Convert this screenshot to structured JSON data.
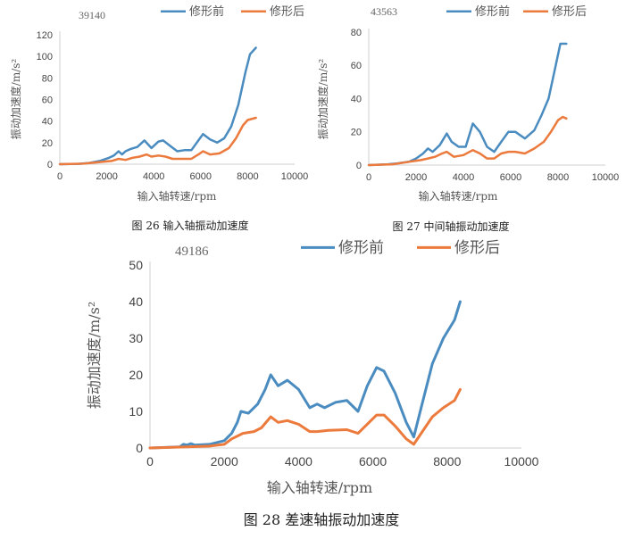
{
  "colors": {
    "before": "#4a8cc0",
    "after": "#eb7a3c",
    "axis": "#cfcfcf"
  },
  "chart_data": [
    {
      "type": "line",
      "corner_label": "39140",
      "caption": "图 26 输入轴振动加速度",
      "xlabel": "输入轴转速/rpm",
      "ylabel": "振动加速度/m/s²",
      "xlim": [
        0,
        10000
      ],
      "ylim": [
        0,
        120
      ],
      "xticks": [
        0,
        2000,
        4000,
        6000,
        8000,
        10000
      ],
      "yticks": [
        0,
        20,
        40,
        60,
        80,
        100,
        120
      ],
      "legend_position": "top",
      "series": [
        {
          "name": "修形前",
          "points": [
            [
              0,
              0
            ],
            [
              800,
              0.3
            ],
            [
              1200,
              1
            ],
            [
              1700,
              3
            ],
            [
              2100,
              6
            ],
            [
              2300,
              8
            ],
            [
              2500,
              12
            ],
            [
              2650,
              9
            ],
            [
              2800,
              12
            ],
            [
              3000,
              14
            ],
            [
              3300,
              16
            ],
            [
              3600,
              22
            ],
            [
              3900,
              15
            ],
            [
              4200,
              21
            ],
            [
              4400,
              22
            ],
            [
              4700,
              17
            ],
            [
              5000,
              12
            ],
            [
              5300,
              13
            ],
            [
              5600,
              13
            ],
            [
              5900,
              22
            ],
            [
              6100,
              28
            ],
            [
              6400,
              23
            ],
            [
              6700,
              20
            ],
            [
              7000,
              24
            ],
            [
              7300,
              35
            ],
            [
              7600,
              55
            ],
            [
              7900,
              85
            ],
            [
              8100,
              102
            ],
            [
              8350,
              108
            ]
          ]
        },
        {
          "name": "修形后",
          "points": [
            [
              0,
              0
            ],
            [
              1000,
              0.5
            ],
            [
              1700,
              2
            ],
            [
              2200,
              3
            ],
            [
              2500,
              5
            ],
            [
              2800,
              4
            ],
            [
              3100,
              6
            ],
            [
              3400,
              7
            ],
            [
              3700,
              9
            ],
            [
              3900,
              7
            ],
            [
              4200,
              8
            ],
            [
              4500,
              7
            ],
            [
              4800,
              5
            ],
            [
              5200,
              5
            ],
            [
              5600,
              5
            ],
            [
              5900,
              9
            ],
            [
              6100,
              12
            ],
            [
              6400,
              9
            ],
            [
              6800,
              10
            ],
            [
              7200,
              15
            ],
            [
              7500,
              24
            ],
            [
              7800,
              36
            ],
            [
              8000,
              41
            ],
            [
              8350,
              43
            ]
          ]
        }
      ]
    },
    {
      "type": "line",
      "corner_label": "43563",
      "caption": "图 27 中间轴振动加速度",
      "xlabel": "输入轴转速/rpm",
      "ylabel": "振动加速度/m/s²",
      "xlim": [
        0,
        10000
      ],
      "ylim": [
        0,
        80
      ],
      "xticks": [
        0,
        2000,
        4000,
        6000,
        8000,
        10000
      ],
      "yticks": [
        0,
        20,
        40,
        60,
        80
      ],
      "legend_position": "top",
      "series": [
        {
          "name": "修形前",
          "points": [
            [
              0,
              0
            ],
            [
              800,
              0.5
            ],
            [
              1200,
              1
            ],
            [
              1700,
              2
            ],
            [
              2000,
              4
            ],
            [
              2300,
              7
            ],
            [
              2500,
              10
            ],
            [
              2700,
              8
            ],
            [
              3000,
              12
            ],
            [
              3300,
              19
            ],
            [
              3500,
              14
            ],
            [
              3800,
              11
            ],
            [
              4100,
              11
            ],
            [
              4400,
              25
            ],
            [
              4700,
              20
            ],
            [
              5000,
              11
            ],
            [
              5300,
              8
            ],
            [
              5600,
              14
            ],
            [
              5900,
              20
            ],
            [
              6200,
              20
            ],
            [
              6600,
              16
            ],
            [
              7000,
              21
            ],
            [
              7300,
              30
            ],
            [
              7600,
              40
            ],
            [
              7900,
              60
            ],
            [
              8100,
              73
            ],
            [
              8350,
              73
            ]
          ]
        },
        {
          "name": "修形后",
          "points": [
            [
              0,
              0
            ],
            [
              1000,
              0.5
            ],
            [
              1700,
              2
            ],
            [
              2200,
              3
            ],
            [
              2500,
              4
            ],
            [
              2800,
              5
            ],
            [
              3100,
              7
            ],
            [
              3300,
              8
            ],
            [
              3600,
              5
            ],
            [
              4000,
              6
            ],
            [
              4400,
              9
            ],
            [
              4700,
              7
            ],
            [
              5000,
              4
            ],
            [
              5300,
              4
            ],
            [
              5600,
              7
            ],
            [
              5900,
              8
            ],
            [
              6200,
              8
            ],
            [
              6600,
              7
            ],
            [
              7000,
              10
            ],
            [
              7400,
              14
            ],
            [
              7700,
              20
            ],
            [
              8000,
              27
            ],
            [
              8200,
              29
            ],
            [
              8350,
              28
            ]
          ]
        }
      ]
    },
    {
      "type": "line",
      "corner_label": "49186",
      "caption": "图 28 差速轴振动加速度",
      "xlabel": "输入轴转速/rpm",
      "ylabel": "振动加速度/m/s²",
      "xlim": [
        0,
        10000
      ],
      "ylim": [
        0,
        50
      ],
      "xticks": [
        0,
        2000,
        4000,
        6000,
        8000,
        10000
      ],
      "yticks": [
        0,
        10,
        20,
        30,
        40,
        50
      ],
      "legend_position": "top",
      "series": [
        {
          "name": "修形前",
          "points": [
            [
              0,
              0
            ],
            [
              800,
              0.3
            ],
            [
              900,
              1
            ],
            [
              1000,
              0.8
            ],
            [
              1100,
              1.2
            ],
            [
              1200,
              0.8
            ],
            [
              1600,
              1
            ],
            [
              2000,
              2
            ],
            [
              2200,
              4
            ],
            [
              2350,
              7
            ],
            [
              2450,
              10
            ],
            [
              2650,
              9.5
            ],
            [
              2900,
              12
            ],
            [
              3100,
              16
            ],
            [
              3250,
              20
            ],
            [
              3450,
              17
            ],
            [
              3700,
              18.5
            ],
            [
              4000,
              16
            ],
            [
              4300,
              11
            ],
            [
              4500,
              12
            ],
            [
              4700,
              11
            ],
            [
              5000,
              12.5
            ],
            [
              5300,
              13
            ],
            [
              5600,
              10
            ],
            [
              5850,
              17
            ],
            [
              6100,
              22
            ],
            [
              6300,
              21
            ],
            [
              6600,
              15
            ],
            [
              6900,
              7
            ],
            [
              7100,
              3
            ],
            [
              7300,
              11
            ],
            [
              7600,
              23
            ],
            [
              7900,
              30
            ],
            [
              8200,
              35
            ],
            [
              8350,
              40
            ]
          ]
        },
        {
          "name": "修形后",
          "points": [
            [
              0,
              0
            ],
            [
              1000,
              0.3
            ],
            [
              1600,
              0.5
            ],
            [
              2000,
              1
            ],
            [
              2200,
              2.5
            ],
            [
              2500,
              4
            ],
            [
              2800,
              4.5
            ],
            [
              3000,
              5.5
            ],
            [
              3250,
              8.5
            ],
            [
              3450,
              7
            ],
            [
              3700,
              7.5
            ],
            [
              4000,
              6.5
            ],
            [
              4300,
              4.5
            ],
            [
              4500,
              4.5
            ],
            [
              4800,
              4.8
            ],
            [
              5300,
              5
            ],
            [
              5600,
              4
            ],
            [
              5900,
              7
            ],
            [
              6100,
              9
            ],
            [
              6300,
              9
            ],
            [
              6600,
              6
            ],
            [
              6900,
              2.5
            ],
            [
              7100,
              1
            ],
            [
              7300,
              4
            ],
            [
              7600,
              8.5
            ],
            [
              7900,
              11
            ],
            [
              8200,
              13
            ],
            [
              8350,
              16
            ]
          ]
        }
      ]
    }
  ]
}
